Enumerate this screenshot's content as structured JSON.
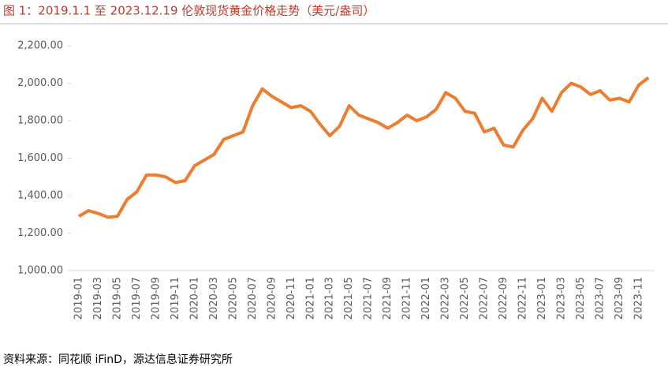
{
  "chart_data": {
    "type": "line",
    "title": "图 1：2019.1.1 至 2023.12.19 伦敦现货黄金价格走势（美元/盎司）",
    "source": "资料来源：同花顺 iFinD，源达信息证券研究所",
    "categories": [
      "2019-01",
      null,
      "2019-03",
      null,
      "2019-05",
      null,
      "2019-07",
      null,
      "2019-09",
      null,
      "2019-11",
      null,
      "2020-01",
      null,
      "2020-03",
      null,
      "2020-05",
      null,
      "2020-07",
      null,
      "2020-09",
      null,
      "2020-11",
      null,
      "2021-01",
      null,
      "2021-03",
      null,
      "2021-05",
      null,
      "2021-07",
      null,
      "2021-09",
      null,
      "2021-11",
      null,
      "2022-01",
      null,
      "2022-03",
      null,
      "2022-05",
      null,
      "2022-07",
      null,
      "2022-09",
      null,
      "2022-11",
      null,
      "2023-01",
      null,
      "2023-03",
      null,
      "2023-05",
      null,
      "2023-07",
      null,
      "2023-09",
      null,
      "2023-11",
      null
    ],
    "series": [
      {
        "color": "#ed7d31",
        "values": [
          1290,
          1320,
          1305,
          1285,
          1290,
          1380,
          1420,
          1510,
          1510,
          1500,
          1470,
          1480,
          1560,
          1590,
          1620,
          1700,
          1720,
          1740,
          1880,
          1970,
          1930,
          1900,
          1870,
          1880,
          1850,
          1780,
          1720,
          1770,
          1880,
          1830,
          1810,
          1790,
          1760,
          1790,
          1830,
          1800,
          1820,
          1860,
          1950,
          1920,
          1850,
          1840,
          1740,
          1760,
          1670,
          1660,
          1750,
          1810,
          1920,
          1850,
          1950,
          2000,
          1980,
          1940,
          1960,
          1910,
          1920,
          1900,
          1990,
          2030
        ]
      }
    ],
    "ylim": [
      1000,
      2200
    ],
    "yticks": [
      {
        "value": 1000,
        "label": "1,000.00"
      },
      {
        "value": 1200,
        "label": "1,200.00"
      },
      {
        "value": 1400,
        "label": "1,400.00"
      },
      {
        "value": 1600,
        "label": "1,600.00"
      },
      {
        "value": 1800,
        "label": "1,800.00"
      },
      {
        "value": 2000,
        "label": "2,000.00"
      },
      {
        "value": 2200,
        "label": "2,200.00"
      }
    ],
    "grid": false
  }
}
